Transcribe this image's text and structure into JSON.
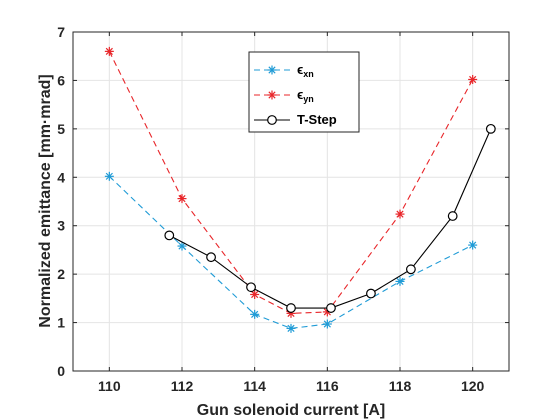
{
  "chart_data": {
    "type": "line",
    "xlabel": "Gun solenoid current [A]",
    "ylabel": "Normalized emittance [mm·mrad]",
    "xlim": [
      109,
      121
    ],
    "ylim": [
      0,
      7
    ],
    "xticks": [
      110,
      112,
      114,
      116,
      118,
      120
    ],
    "yticks": [
      0,
      1,
      2,
      3,
      4,
      5,
      6,
      7
    ],
    "grid": true,
    "legend": "top-center",
    "series": [
      {
        "name": "xn",
        "legend_prefix": "ϵ",
        "legend_sub": "xn",
        "color": "#1f9bd6",
        "line": "dashed",
        "marker": "asterisk",
        "x": [
          110,
          112,
          114,
          115,
          116,
          118,
          120
        ],
        "y": [
          4.02,
          2.58,
          1.17,
          0.88,
          0.97,
          1.85,
          2.6
        ]
      },
      {
        "name": "yn",
        "legend_prefix": "ϵ",
        "legend_sub": "yn",
        "color": "#e8262a",
        "line": "dashed",
        "marker": "asterisk",
        "x": [
          110,
          112,
          114,
          115,
          116,
          118,
          120
        ],
        "y": [
          6.6,
          3.56,
          1.58,
          1.19,
          1.22,
          3.24,
          6.02
        ]
      },
      {
        "name": "T-Step",
        "legend_prefix": "T-Step",
        "legend_sub": "",
        "color": "#000000",
        "line": "solid",
        "marker": "circle",
        "x": [
          111.65,
          112.8,
          113.9,
          115,
          116.1,
          117.2,
          118.3,
          119.45,
          120.5
        ],
        "y": [
          2.8,
          2.35,
          1.73,
          1.3,
          1.3,
          1.6,
          2.1,
          3.2,
          5.0
        ]
      }
    ]
  }
}
